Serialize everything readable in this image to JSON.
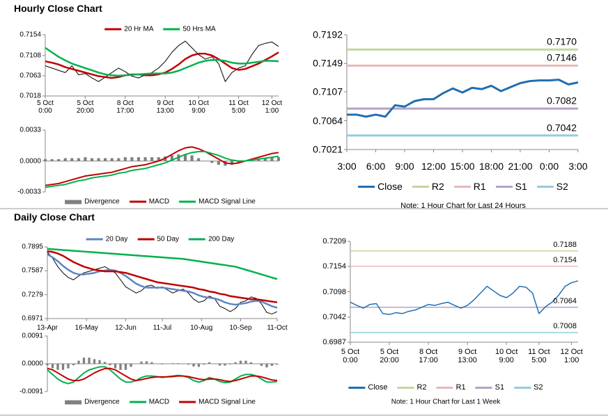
{
  "section_titles": [
    "Hourly Close Chart",
    "Daily Close Chart"
  ],
  "chart_data": [
    {
      "type": "line",
      "ylim": [
        0.7018,
        0.7154
      ],
      "yticks": [
        0.7018,
        0.7063,
        0.7108,
        0.7154
      ],
      "xlim": [
        0,
        35
      ],
      "xticks": [
        {
          "value": 0,
          "label": "5 Oct\n0:00"
        },
        {
          "value": 6,
          "label": "5 Oct\n20:00"
        },
        {
          "value": 12,
          "label": "8 Oct\n17:00"
        },
        {
          "value": 18,
          "label": "9 Oct\n13:00"
        },
        {
          "value": 23,
          "label": "10 Oct\n9:00"
        },
        {
          "value": 29,
          "label": "11 Oct\n5:00"
        },
        {
          "value": 34,
          "label": "12 Oct\n1:00"
        }
      ],
      "series": [
        {
          "color": "#000000",
          "values": [
            0.7085,
            0.708,
            0.7075,
            0.707,
            0.7085,
            0.7065,
            0.7068,
            0.7058,
            0.705,
            0.706,
            0.707,
            0.708,
            0.7072,
            0.7062,
            0.7058,
            0.7065,
            0.707,
            0.708,
            0.7095,
            0.7115,
            0.713,
            0.714,
            0.7125,
            0.711,
            0.71,
            0.7105,
            0.709,
            0.705,
            0.707,
            0.708,
            0.7085,
            0.711,
            0.713,
            0.7135,
            0.7138,
            0.7128
          ]
        },
        {
          "name": "20 Hr MA",
          "color": "#c00000",
          "values": [
            0.7095,
            0.7092,
            0.7088,
            0.7082,
            0.7078,
            0.7074,
            0.707,
            0.7066,
            0.7062,
            0.706,
            0.7058,
            0.706,
            0.7064,
            0.7066,
            0.7066,
            0.7064,
            0.7064,
            0.7066,
            0.707,
            0.7078,
            0.7088,
            0.71,
            0.7108,
            0.7112,
            0.7112,
            0.7108,
            0.71,
            0.709,
            0.708,
            0.7076,
            0.7078,
            0.7084,
            0.709,
            0.7098,
            0.7106,
            0.7115
          ]
        },
        {
          "name": "50 Hrs MA",
          "color": "#00b050",
          "values": [
            0.7125,
            0.7115,
            0.7105,
            0.7097,
            0.709,
            0.7085,
            0.708,
            0.7075,
            0.707,
            0.7066,
            0.7064,
            0.7063,
            0.7064,
            0.7065,
            0.7066,
            0.7067,
            0.7068,
            0.7068,
            0.7068,
            0.707,
            0.7074,
            0.708,
            0.7086,
            0.7092,
            0.7096,
            0.7098,
            0.7098,
            0.7096,
            0.7092,
            0.709,
            0.709,
            0.7092,
            0.7094,
            0.7096,
            0.7096,
            0.7095
          ]
        }
      ]
    },
    {
      "type": "line",
      "ylim": [
        -0.0033,
        0.0033
      ],
      "yticks": [
        0.0033,
        {
          "value": 0,
          "label": "0.0000"
        },
        -0.0033
      ],
      "xlim": [
        0,
        35
      ],
      "series": [
        {
          "name": "Divergence",
          "type": "bar",
          "color": "#808080",
          "values": [
            0.0002,
            0.0002,
            0.0002,
            0.0003,
            0.0003,
            0.0003,
            0.0004,
            0.0003,
            0.0003,
            0.0003,
            0.0003,
            0.0003,
            0.0004,
            0.0004,
            0.0004,
            0.0004,
            0.0004,
            0.0004,
            0.0005,
            0.0006,
            0.0007,
            0.0007,
            0.0006,
            0.0003,
            0.0,
            -0.0002,
            -0.0004,
            -0.0005,
            -0.0004,
            -0.0002,
            0.0,
            0.0001,
            0.0002,
            0.0003,
            0.0004,
            0.0004
          ]
        },
        {
          "name": "MACD",
          "color": "#c00000",
          "values": [
            -0.0026,
            -0.0025,
            -0.0024,
            -0.0022,
            -0.002,
            -0.0018,
            -0.0016,
            -0.0015,
            -0.0014,
            -0.0013,
            -0.0012,
            -0.001,
            -0.0008,
            -0.0006,
            -0.0005,
            -0.0004,
            -0.0002,
            0.0,
            0.0003,
            0.0007,
            0.0011,
            0.0014,
            0.0015,
            0.0013,
            0.001,
            0.0006,
            0.0002,
            -0.0002,
            -0.0003,
            -0.0002,
            0.0,
            0.0002,
            0.0004,
            0.0006,
            0.0008,
            0.0009
          ]
        },
        {
          "name": "MACD Signal Line",
          "color": "#00b050",
          "values": [
            -0.0028,
            -0.0027,
            -0.0026,
            -0.0025,
            -0.0023,
            -0.0021,
            -0.002,
            -0.0018,
            -0.0017,
            -0.0016,
            -0.0015,
            -0.0013,
            -0.0012,
            -0.001,
            -0.0009,
            -0.0008,
            -0.0006,
            -0.0004,
            -0.0002,
            0.0001,
            0.0004,
            0.0007,
            0.0009,
            0.001,
            0.001,
            0.0008,
            0.0006,
            0.0003,
            0.0001,
            0.0,
            0.0,
            0.0001,
            0.0002,
            0.0003,
            0.0004,
            0.0005
          ]
        }
      ]
    },
    {
      "type": "line",
      "ylim": [
        0.7021,
        0.7192
      ],
      "yticks": [
        0.7192,
        0.7149,
        0.7107,
        0.7064,
        0.7021
      ],
      "xlim": [
        0,
        24
      ],
      "xticks": [
        {
          "value": 0,
          "label": "3:00"
        },
        {
          "value": 3,
          "label": "6:00"
        },
        {
          "value": 6,
          "label": "9:00"
        },
        {
          "value": 9,
          "label": "12:00"
        },
        {
          "value": 12,
          "label": "15:00"
        },
        {
          "value": 15,
          "label": "18:00"
        },
        {
          "value": 18,
          "label": "21:00"
        },
        {
          "value": 21,
          "label": "0:00"
        },
        {
          "value": 24,
          "label": "3:00"
        }
      ],
      "series": [
        {
          "name": "Close",
          "color": "#1f6fb2",
          "values": [
            0.7073,
            0.7073,
            0.707,
            0.7073,
            0.707,
            0.7087,
            0.7085,
            0.7093,
            0.7096,
            0.7096,
            0.7105,
            0.7112,
            0.7106,
            0.7113,
            0.7111,
            0.7116,
            0.7108,
            0.7114,
            0.712,
            0.7123,
            0.7124,
            0.7124,
            0.7125,
            0.7118,
            0.7121
          ]
        }
      ],
      "levels": [
        {
          "name": "R2",
          "color": "#c3d69b",
          "values": [
            0.717
          ],
          "value_labels": [
            "0.7170"
          ]
        },
        {
          "name": "R1",
          "color": "#e6b9b8",
          "values": [
            0.7146
          ]
        },
        {
          "name": "S1",
          "color": "#b3a2c7",
          "values": [
            0.7082
          ]
        },
        {
          "name": "S2",
          "color": "#93cddd",
          "values": [
            0.7042
          ]
        }
      ],
      "note": "Note: 1 Hour Chart for Last 24 Hours"
    },
    {
      "type": "line",
      "ylim": [
        0.6971,
        0.7895
      ],
      "yticks": [
        0.7895,
        0.7587,
        0.7279,
        0.6971
      ],
      "xlim": [
        0,
        44
      ],
      "xticks": [
        {
          "value": 0,
          "label": "13-Apr"
        },
        {
          "value": 7.5,
          "label": "16-May"
        },
        {
          "value": 15,
          "label": "12-Jun"
        },
        {
          "value": 22,
          "label": "11-Jul"
        },
        {
          "value": 29.5,
          "label": "10-Aug"
        },
        {
          "value": 37,
          "label": "10-Sep"
        },
        {
          "value": 44,
          "label": "11-Oct"
        }
      ],
      "series": [
        {
          "color": "#000000",
          "values": [
            0.783,
            0.775,
            0.764,
            0.756,
            0.75,
            0.747,
            0.752,
            0.756,
            0.758,
            0.76,
            0.762,
            0.764,
            0.76,
            0.756,
            0.747,
            0.738,
            0.734,
            0.73,
            0.733,
            0.739,
            0.74,
            0.736,
            0.738,
            0.734,
            0.73,
            0.733,
            0.735,
            0.73,
            0.722,
            0.718,
            0.72,
            0.726,
            0.723,
            0.713,
            0.71,
            0.706,
            0.71,
            0.718,
            0.72,
            0.725,
            0.723,
            0.716,
            0.705,
            0.703,
            0.706
          ]
        },
        {
          "name": "20 Day",
          "color": "#5b85c4",
          "values": [
            0.78,
            0.776,
            0.771,
            0.765,
            0.76,
            0.756,
            0.754,
            0.754,
            0.755,
            0.756,
            0.758,
            0.759,
            0.76,
            0.759,
            0.756,
            0.752,
            0.747,
            0.742,
            0.739,
            0.737,
            0.737,
            0.737,
            0.737,
            0.736,
            0.735,
            0.734,
            0.733,
            0.732,
            0.73,
            0.727,
            0.725,
            0.724,
            0.723,
            0.721,
            0.718,
            0.716,
            0.715,
            0.716,
            0.717,
            0.719,
            0.72,
            0.719,
            0.716,
            0.713,
            0.711
          ]
        },
        {
          "name": "50 Day",
          "color": "#c00000",
          "values": [
            0.784,
            0.783,
            0.781,
            0.778,
            0.774,
            0.77,
            0.767,
            0.764,
            0.762,
            0.76,
            0.759,
            0.758,
            0.758,
            0.758,
            0.757,
            0.756,
            0.754,
            0.752,
            0.75,
            0.748,
            0.746,
            0.744,
            0.743,
            0.742,
            0.741,
            0.74,
            0.739,
            0.738,
            0.737,
            0.735,
            0.734,
            0.732,
            0.731,
            0.729,
            0.728,
            0.726,
            0.725,
            0.724,
            0.723,
            0.722,
            0.722,
            0.721,
            0.72,
            0.719,
            0.718
          ]
        },
        {
          "name": "200 Day",
          "color": "#00b050",
          "values": [
            0.787,
            0.7865,
            0.786,
            0.7855,
            0.785,
            0.7845,
            0.784,
            0.7835,
            0.783,
            0.7825,
            0.782,
            0.7815,
            0.781,
            0.7805,
            0.78,
            0.7795,
            0.779,
            0.7785,
            0.778,
            0.7775,
            0.777,
            0.7765,
            0.776,
            0.7755,
            0.775,
            0.7745,
            0.774,
            0.773,
            0.772,
            0.771,
            0.77,
            0.769,
            0.768,
            0.767,
            0.766,
            0.765,
            0.764,
            0.762,
            0.76,
            0.758,
            0.756,
            0.754,
            0.752,
            0.75,
            0.748
          ]
        }
      ]
    },
    {
      "type": "line",
      "ylim": [
        -0.0091,
        0.0091
      ],
      "yticks": [
        0.0091,
        {
          "value": 0,
          "label": "0.0000"
        },
        -0.0091
      ],
      "xlim": [
        0,
        44
      ],
      "series": [
        {
          "name": "Divergence",
          "type": "bar",
          "color": "#808080",
          "values": [
            -0.0005,
            -0.0015,
            -0.002,
            -0.002,
            -0.0015,
            -0.0005,
            0.001,
            0.002,
            0.002,
            0.0015,
            0.0012,
            0.0006,
            -0.0005,
            -0.0015,
            -0.002,
            -0.002,
            -0.001,
            0.0,
            0.0007,
            0.0008,
            0.0005,
            0.0001,
            -0.0002,
            0.0001,
            0.0002,
            0.0002,
            0.0,
            -0.0003,
            -0.0009,
            -0.001,
            -0.0003,
            0.0005,
            0.0,
            -0.0006,
            -0.0006,
            -0.0002,
            0.0005,
            0.001,
            0.001,
            0.0005,
            0.0,
            -0.0007,
            -0.0012,
            -0.0007,
            -0.0003
          ]
        },
        {
          "name": "MACD",
          "color": "#00b050",
          "values": [
            -0.002,
            -0.0035,
            -0.005,
            -0.006,
            -0.0065,
            -0.006,
            -0.0045,
            -0.003,
            -0.002,
            -0.0015,
            -0.001,
            -0.001,
            -0.002,
            -0.0035,
            -0.005,
            -0.006,
            -0.006,
            -0.0055,
            -0.0045,
            -0.004,
            -0.004,
            -0.0042,
            -0.0045,
            -0.0042,
            -0.004,
            -0.0038,
            -0.004,
            -0.0045,
            -0.0055,
            -0.006,
            -0.0055,
            -0.0045,
            -0.005,
            -0.0058,
            -0.0062,
            -0.006,
            -0.005,
            -0.004,
            -0.0035,
            -0.0035,
            -0.004,
            -0.005,
            -0.006,
            -0.006,
            -0.0058
          ]
        },
        {
          "name": "MACD Signal Line",
          "color": "#c00000",
          "values": [
            -0.0015,
            -0.002,
            -0.003,
            -0.004,
            -0.005,
            -0.0055,
            -0.0055,
            -0.005,
            -0.004,
            -0.003,
            -0.0022,
            -0.0016,
            -0.0015,
            -0.002,
            -0.003,
            -0.004,
            -0.005,
            -0.0055,
            -0.0052,
            -0.0048,
            -0.0045,
            -0.0043,
            -0.0043,
            -0.0043,
            -0.0042,
            -0.004,
            -0.004,
            -0.0042,
            -0.0046,
            -0.005,
            -0.0052,
            -0.005,
            -0.005,
            -0.0052,
            -0.0056,
            -0.0058,
            -0.0055,
            -0.005,
            -0.0045,
            -0.004,
            -0.004,
            -0.0043,
            -0.0048,
            -0.0053,
            -0.0055
          ]
        }
      ]
    },
    {
      "type": "line",
      "ylim": [
        0.6987,
        0.7209
      ],
      "yticks": [
        0.7209,
        0.7154,
        0.7098,
        0.7042,
        0.6987
      ],
      "xlim": [
        0,
        35
      ],
      "xticks": [
        {
          "value": 0,
          "label": "5 Oct\n0:00"
        },
        {
          "value": 6,
          "label": "5 Oct\n20:00"
        },
        {
          "value": 12,
          "label": "8 Oct\n17:00"
        },
        {
          "value": 18,
          "label": "9 Oct\n13:00"
        },
        {
          "value": 24,
          "label": "10 Oct\n9:00"
        },
        {
          "value": 29,
          "label": "11 Oct\n5:00"
        },
        {
          "value": 34,
          "label": "12 Oct\n1:00"
        }
      ],
      "series": [
        {
          "name": "Close",
          "color": "#1f6fb2",
          "values": [
            0.7075,
            0.7068,
            0.7062,
            0.707,
            0.7072,
            0.705,
            0.7048,
            0.7052,
            0.705,
            0.7055,
            0.7058,
            0.7064,
            0.707,
            0.7068,
            0.7072,
            0.7075,
            0.7068,
            0.7062,
            0.7068,
            0.708,
            0.7095,
            0.711,
            0.71,
            0.709,
            0.7085,
            0.7095,
            0.711,
            0.7108,
            0.7095,
            0.705,
            0.7065,
            0.7075,
            0.709,
            0.711,
            0.7118,
            0.7122
          ]
        }
      ],
      "levels": [
        {
          "name": "R2",
          "color": "#c3d69b",
          "values": [
            0.7188
          ]
        },
        {
          "name": "R1",
          "color": "#e6b9b8",
          "values": [
            0.7154
          ]
        },
        {
          "name": "S1",
          "color": "#b3a2c7",
          "values": [
            0.7064
          ]
        },
        {
          "name": "S2",
          "color": "#93cddd",
          "values": [
            0.7008
          ]
        }
      ],
      "note": "Note: 1 Hour Chart for Last 1 Week"
    }
  ]
}
